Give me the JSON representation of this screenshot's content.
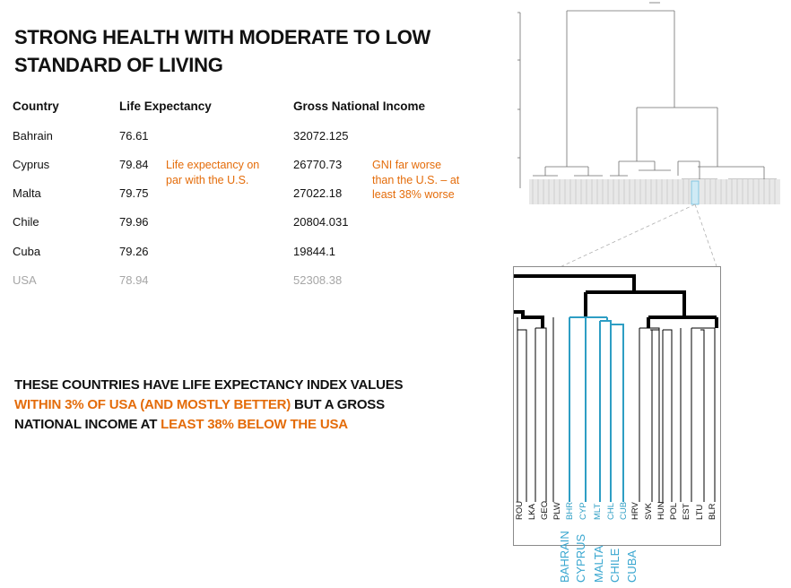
{
  "title": "STRONG HEALTH WITH MODERATE TO LOW STANDARD OF LIVING",
  "table": {
    "headers": {
      "country": "Country",
      "life": "Life Expectancy",
      "gni": "Gross National Income"
    },
    "rows": [
      {
        "country": "Bahrain",
        "life": "76.61",
        "gni": "32072.125"
      },
      {
        "country": "Cyprus",
        "life": "79.84",
        "gni": "26770.73"
      },
      {
        "country": "Malta",
        "life": "79.75",
        "gni": "27022.18"
      },
      {
        "country": "Chile",
        "life": "79.96",
        "gni": "20804.031"
      },
      {
        "country": "Cuba",
        "life": "79.26",
        "gni": "19844.1"
      },
      {
        "country": "USA",
        "life": "78.94",
        "gni": "52308.38"
      }
    ],
    "note_life": "Life expectancy on par with the U.S.",
    "note_gni": "GNI  far worse than the U.S. – at least 38% worse"
  },
  "summary": {
    "part1": "THESE COUNTRIES HAVE LIFE EXPECTANCY INDEX VALUES",
    "part2": "WITHIN 3% OF USA (AND MOSTLY BETTER)",
    "part3": " BUT A GROSS NATIONAL INCOME AT ",
    "part4": "LEAST 38% BELOW THE USA"
  },
  "dendrogram": {
    "leaves": [
      "ROU",
      "LKA",
      "GEO",
      "PLW",
      "BHR",
      "CYP",
      "MLT",
      "CHL",
      "CUB",
      "HRV",
      "SVK",
      "HUN",
      "POL",
      "EST",
      "LTU",
      "BLR"
    ],
    "highlighted": [
      "BHR",
      "CYP",
      "MLT",
      "CHL",
      "CUB"
    ],
    "full_names": [
      "BAHRAIN",
      "CYPRUS",
      "MALTA",
      "CHILE",
      "CUBA"
    ]
  },
  "colors": {
    "accent": "#e46c0a",
    "highlight": "#2e9ec4",
    "muted": "#a6a6a6"
  }
}
